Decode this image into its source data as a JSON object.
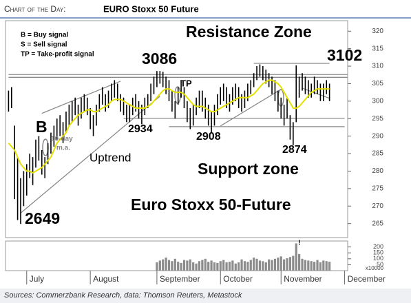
{
  "chart_data": {
    "type": "hilo",
    "title_prefix": "Chart of the Day:",
    "title": "EURO Stoxx 50 Future",
    "source": "Sources: Commerzbank Research, data: Thomson Reuters, Metastock",
    "legend_lines": [
      "B = Buy signal",
      "S = Sell signal",
      "TP = Take-profit signal"
    ],
    "annotations": [
      "Resistance Zone",
      "3102",
      "3086",
      "TP",
      "B",
      "10-day",
      "m.a.",
      "2934",
      "2908",
      "2874",
      "Uptrend",
      "Support zone",
      "Euro Stoxx 50-Future",
      "2649"
    ],
    "color": "#000000",
    "xlim": [
      -1,
      112
    ],
    "xticks": [
      {
        "value": 6,
        "label": "July"
      },
      {
        "value": 27,
        "label": "August"
      },
      {
        "value": 49,
        "label": "September"
      },
      {
        "value": 70,
        "label": "October"
      },
      {
        "value": 90,
        "label": "November"
      },
      {
        "value": 111,
        "label": "December"
      }
    ],
    "ylim": [
      261,
      323
    ],
    "yticks": [
      265,
      270,
      275,
      280,
      285,
      290,
      295,
      300,
      305,
      310,
      315,
      320
    ],
    "high": [
      303,
      304,
      293,
      284,
      278,
      280,
      282,
      285,
      284,
      289,
      290,
      286,
      284,
      288,
      291,
      293,
      295,
      296,
      294,
      297,
      299,
      300,
      301,
      299,
      301,
      302,
      301,
      298,
      296,
      299,
      302,
      304,
      302,
      303,
      305,
      306,
      305,
      302,
      301,
      299,
      299,
      301,
      302,
      300,
      299,
      301,
      302,
      305,
      307,
      308.6,
      308.6,
      308.4,
      307,
      306,
      303,
      300,
      304,
      306,
      304,
      300,
      298,
      299,
      301,
      303,
      303,
      301,
      299,
      297,
      299,
      302,
      304,
      305,
      304,
      302,
      304,
      305,
      304,
      302,
      303,
      305,
      306,
      308,
      310,
      310.5,
      310,
      309,
      308,
      307,
      306,
      303,
      301,
      299,
      301,
      296,
      294,
      310.2,
      307,
      308,
      307,
      306,
      305,
      307,
      306,
      305,
      305,
      306,
      305
    ],
    "low": [
      297,
      298,
      272,
      266,
      264.9,
      270,
      273,
      278,
      276,
      281,
      283,
      279,
      278,
      282,
      285,
      287,
      289,
      290,
      288,
      291,
      293,
      294,
      296,
      293,
      295,
      297,
      296,
      292,
      290,
      293,
      297,
      299,
      297,
      298,
      300,
      301,
      300,
      297,
      296,
      294,
      294,
      296,
      297,
      295,
      293.4,
      296,
      298,
      300,
      302,
      304,
      305,
      304,
      302,
      300,
      297,
      295,
      299,
      301,
      298,
      294,
      292,
      293,
      296,
      298,
      297,
      295,
      293,
      290.8,
      293,
      296,
      299,
      300,
      298,
      297,
      299,
      300,
      298,
      297,
      298,
      300,
      302,
      304,
      306,
      307,
      306,
      305,
      304,
      302,
      300,
      297,
      295,
      293,
      295,
      289,
      287.4,
      294,
      301,
      303,
      302,
      301,
      301,
      302,
      302,
      300,
      300,
      302,
      300
    ],
    "ma": {
      "name": "10-day m.a.",
      "color": "#e6e000",
      "values": [
        288,
        287,
        286,
        284,
        282,
        281,
        280,
        280,
        279.5,
        280,
        280.5,
        281,
        282,
        283,
        284,
        286,
        288,
        289,
        290,
        291,
        293,
        294,
        295,
        296,
        296.5,
        297,
        297.5,
        297.5,
        297,
        297,
        297.5,
        298,
        298.5,
        299,
        300,
        300.5,
        300.5,
        300.5,
        300,
        299.5,
        299,
        298.5,
        298,
        298,
        298,
        298,
        298.5,
        299,
        300,
        301,
        302,
        303,
        303.5,
        303.5,
        303,
        302.5,
        302.5,
        302.5,
        302,
        301,
        300,
        299,
        298.5,
        298.5,
        298.5,
        298,
        297.5,
        297,
        297,
        297.5,
        298,
        298.5,
        299,
        299.5,
        300,
        300.5,
        301,
        301,
        301,
        301,
        301.5,
        302,
        303,
        304,
        305,
        305.5,
        306,
        306,
        305.5,
        305,
        304,
        302.5,
        301,
        299.5,
        298,
        298,
        298.5,
        299.5,
        300.5,
        301.5,
        302.5,
        303,
        303.5,
        303.5,
        303.5,
        303.5,
        303.5
      ]
    },
    "lines": [
      {
        "x": [
          0,
          112
        ],
        "y": [
          307.6,
          307.6
        ]
      },
      {
        "x": [
          0,
          112
        ],
        "y": [
          306.8,
          306.8
        ]
      },
      {
        "x": [
          81,
          106
        ],
        "y": [
          310.8,
          310.8
        ]
      },
      {
        "x": [
          38,
          111
        ],
        "y": [
          295.1,
          295.1
        ]
      },
      {
        "x": [
          53,
          111
        ],
        "y": [
          292.7,
          292.7
        ]
      },
      {
        "x": [
          11,
          37
        ],
        "y": [
          296.5,
          305.7
        ]
      },
      {
        "x": [
          4,
          50
        ],
        "y": [
          268,
          301.4
        ]
      },
      {
        "x": [
          70,
          90
        ],
        "y": [
          292.9,
          303.4
        ]
      },
      {
        "x": [
          97,
          106
        ],
        "y": [
          303.7,
          300.8
        ]
      }
    ],
    "volume": {
      "label": "x10000",
      "marker": "!",
      "color": "#8c8c8c",
      "ylim": [
        0,
        250
      ],
      "yticks": [
        50,
        100,
        150,
        200
      ],
      "values": [
        null,
        null,
        null,
        null,
        null,
        null,
        null,
        null,
        null,
        null,
        null,
        null,
        null,
        null,
        null,
        null,
        null,
        null,
        null,
        null,
        null,
        null,
        null,
        null,
        null,
        null,
        null,
        null,
        null,
        null,
        null,
        null,
        null,
        null,
        null,
        null,
        null,
        null,
        null,
        null,
        null,
        null,
        null,
        null,
        null,
        null,
        null,
        null,
        null,
        70,
        85,
        95,
        110,
        90,
        80,
        100,
        75,
        65,
        90,
        85,
        95,
        70,
        60,
        80,
        90,
        100,
        75,
        85,
        70,
        65,
        80,
        90,
        70,
        75,
        85,
        60,
        70,
        95,
        80,
        75,
        90,
        110,
        100,
        85,
        80,
        70,
        95,
        90,
        100,
        110,
        120,
        95,
        105,
        115,
        125,
        230,
        140,
        100,
        90,
        85,
        80,
        75,
        90,
        70,
        85,
        80,
        75
      ]
    }
  }
}
